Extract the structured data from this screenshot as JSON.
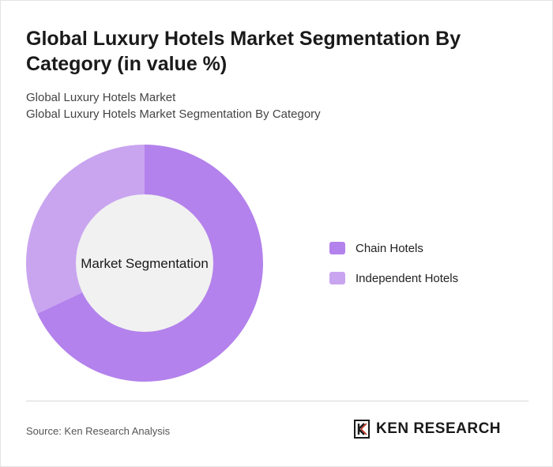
{
  "title": "Global Luxury Hotels Market Segmentation By Category (in value %)",
  "subtitle_1": "Global Luxury Hotels Market",
  "subtitle_2": "Global Luxury Hotels Market Segmentation By Category",
  "source": "Source: Ken Research Analysis",
  "logo_text": "KEN RESEARCH",
  "chart_data": {
    "type": "pie",
    "donut": true,
    "center_label": "Market Segmentation",
    "categories": [
      "Chain Hotels",
      "Independent Hotels"
    ],
    "values": [
      68,
      32
    ],
    "colors": [
      "#b382ec",
      "#c9a5f0"
    ],
    "legend_position": "right"
  }
}
